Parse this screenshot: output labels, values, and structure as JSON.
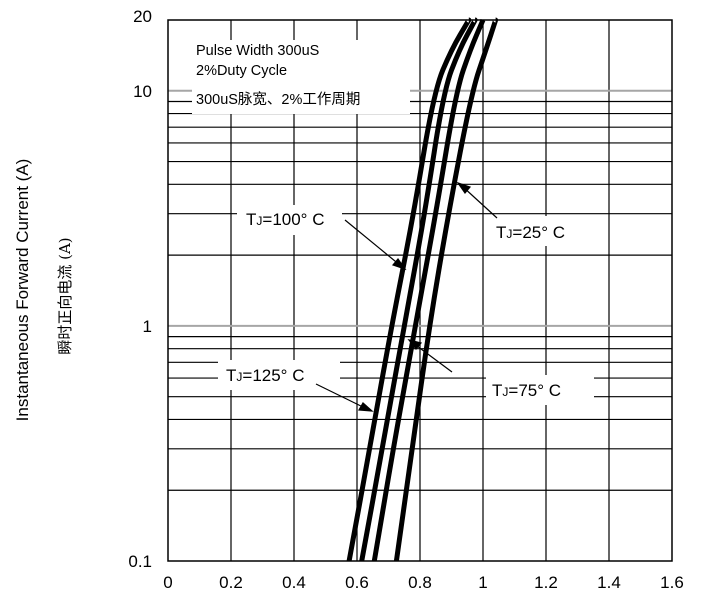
{
  "chart_data": {
    "type": "line",
    "title": "",
    "xlabel": "",
    "ylabel": "Instantaneous Forward Current (A)",
    "ylabel_cn": "瞬时正向电流 (A)",
    "y_scale": "log",
    "xlim": [
      0,
      1.6
    ],
    "ylim": [
      0.1,
      20
    ],
    "x_ticks": [
      "0",
      "0.2",
      "0.4",
      "0.6",
      "0.8",
      "1",
      "1.2",
      "1.4",
      "1.6"
    ],
    "y_ticks": [
      "0.1",
      "1",
      "10",
      "20"
    ],
    "grid": true,
    "notes": [
      "Pulse Width 300uS",
      "2%Duty Cycle",
      "300uS脉宽、2%工作周期"
    ],
    "series": [
      {
        "name": "TJ=125° C",
        "x": [
          0.575,
          0.64,
          0.71,
          0.78,
          0.845,
          0.9,
          0.955
        ],
        "y": [
          0.1,
          0.3,
          1,
          3,
          10,
          15,
          20
        ]
      },
      {
        "name": "TJ=100° C",
        "x": [
          0.615,
          0.68,
          0.75,
          0.815,
          0.875,
          0.925,
          0.975
        ],
        "y": [
          0.1,
          0.3,
          1,
          3,
          10,
          15,
          20
        ]
      },
      {
        "name": "TJ=75° C",
        "x": [
          0.655,
          0.715,
          0.785,
          0.85,
          0.915,
          0.96,
          1.0
        ],
        "y": [
          0.1,
          0.3,
          1,
          3,
          10,
          15,
          20
        ]
      },
      {
        "name": "TJ=25° C",
        "x": [
          0.725,
          0.775,
          0.83,
          0.89,
          0.965,
          1.01,
          1.04
        ],
        "y": [
          0.1,
          0.3,
          1,
          3,
          10,
          15,
          20
        ]
      }
    ],
    "curve_labels": [
      {
        "t": "T",
        "sub": "J",
        "rest": "=100° C"
      },
      {
        "t": "T",
        "sub": "J",
        "rest": "=25° C"
      },
      {
        "t": "T",
        "sub": "J",
        "rest": "=125° C"
      },
      {
        "t": "T",
        "sub": "J",
        "rest": "=75° C"
      }
    ]
  }
}
